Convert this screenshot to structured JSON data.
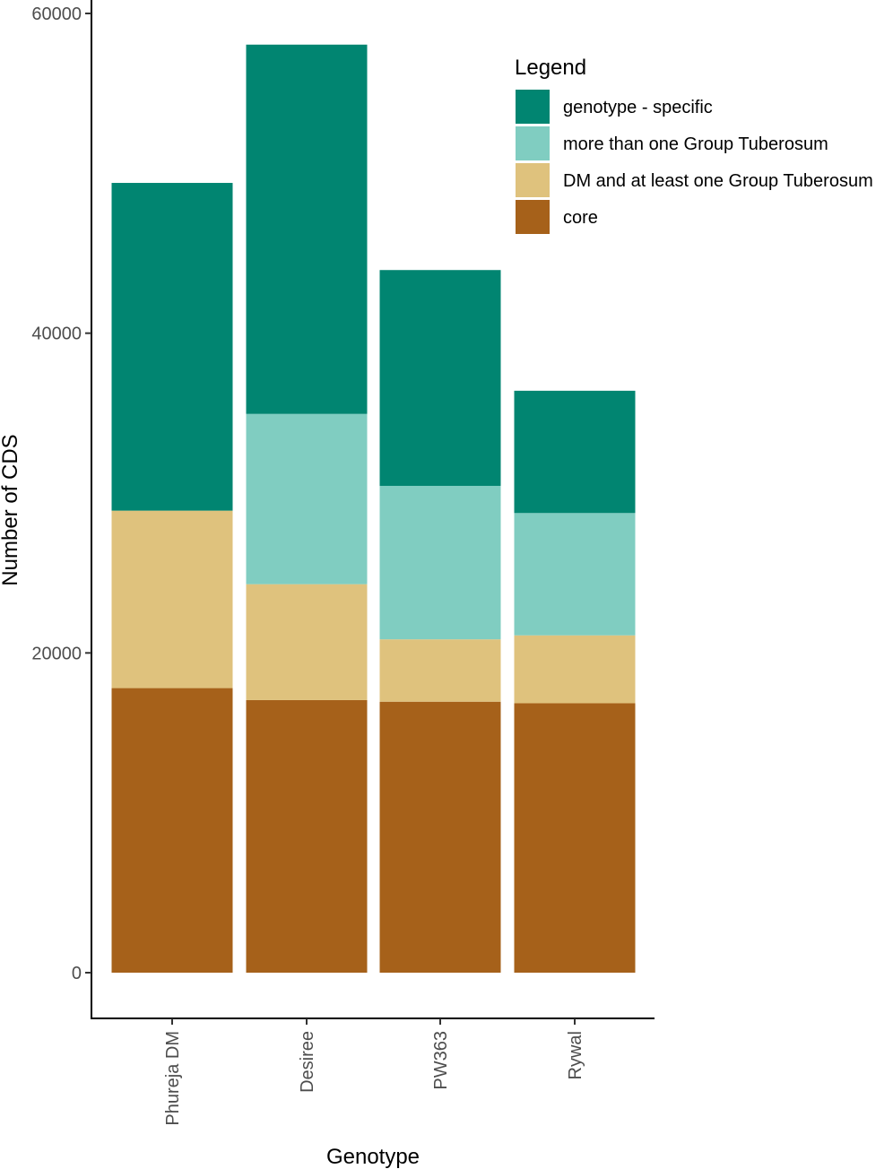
{
  "chart_data": {
    "type": "bar",
    "stacked": true,
    "categories": [
      "Phureja DM",
      "Desiree",
      "PW363",
      "Rywal"
    ],
    "xlabel": "Genotype",
    "ylabel": "Number of CDS",
    "ylim": [
      0,
      60000
    ],
    "yticks": [
      0,
      20000,
      40000,
      60000
    ],
    "ytick_labels": [
      "0",
      "20000",
      "40000",
      "60000"
    ],
    "grid": false,
    "legend": {
      "title": "Legend",
      "position": "top-right"
    },
    "series": [
      {
        "name": "core",
        "color": "#A6611A",
        "values": [
          17800,
          17050,
          16950,
          16850
        ]
      },
      {
        "name": "DM and at least one Group Tuberosum",
        "color": "#DFC27D",
        "values": [
          11100,
          7250,
          3900,
          4250
        ]
      },
      {
        "name": "more than one Group Tuberosum",
        "color": "#80CDC1",
        "values": [
          0,
          10650,
          9600,
          7650
        ]
      },
      {
        "name": "genotype - specific",
        "color": "#018571",
        "values": [
          20500,
          23100,
          13500,
          7650
        ]
      }
    ],
    "legend_order": [
      "genotype - specific",
      "more than one Group Tuberosum",
      "DM and at least one Group Tuberosum",
      "core"
    ]
  }
}
